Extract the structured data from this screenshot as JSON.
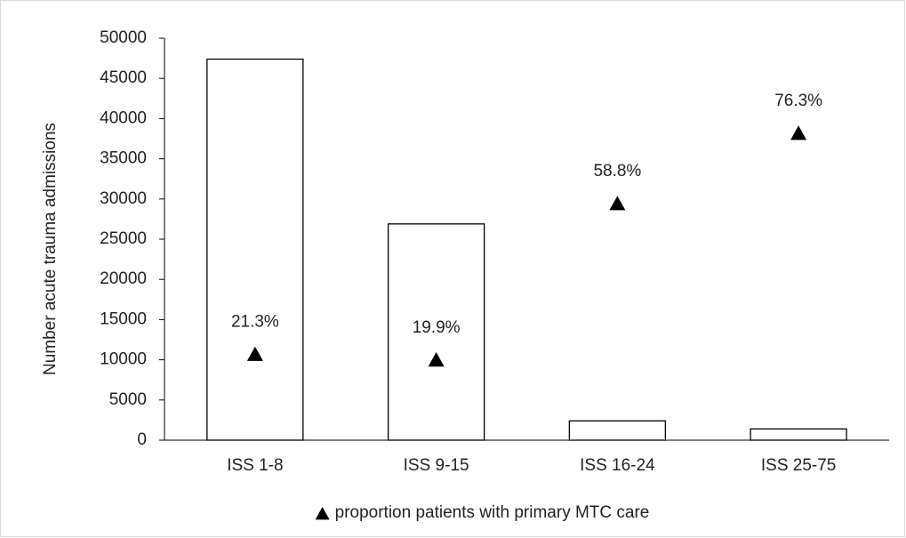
{
  "chart_data": {
    "type": "bar",
    "y_label": "Number acute trauma admissions",
    "categories": [
      "ISS 1-8",
      "ISS 9-15",
      "ISS 16-24",
      "ISS 25-75"
    ],
    "series": [
      {
        "color": "#ffffff",
        "values": [
          47400,
          26900,
          2400,
          1400
        ]
      },
      {
        "name": "proportion patients with primary MTC care",
        "type": "scatter",
        "marker": "triangle",
        "color": "#000000",
        "axis": "y2",
        "values": [
          21.3,
          19.9,
          58.8,
          76.3
        ],
        "value_labels": [
          "21.3%",
          "19.9%",
          "58.8%",
          "76.3%"
        ]
      }
    ],
    "ylim": [
      0,
      50000
    ],
    "yticks": [
      0,
      5000,
      10000,
      15000,
      20000,
      25000,
      30000,
      35000,
      40000,
      45000,
      50000
    ],
    "y2lim": [
      0,
      100
    ],
    "grid": false,
    "legend": "bottom"
  }
}
